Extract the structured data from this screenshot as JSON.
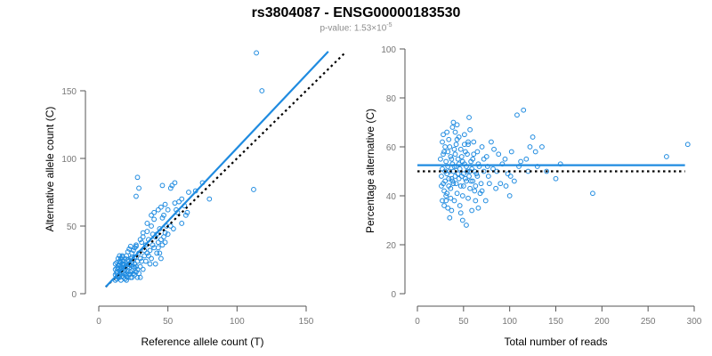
{
  "title": "rs3804087 - ENSG00000183530",
  "subtitle": {
    "prefix": "p-value: 1.53×10",
    "exponent": "-5"
  },
  "colors": {
    "points": "#1f8be0",
    "fit": "#1f8be0",
    "reference": "#000000",
    "axis": "#555555"
  },
  "chart_data": [
    {
      "type": "scatter",
      "xlabel": "Reference allele count (T)",
      "ylabel": "Alternative allele count (C)",
      "xlim": [
        0,
        160
      ],
      "ylim": [
        0,
        180
      ],
      "xticks": [
        0,
        50,
        100,
        150
      ],
      "yticks": [
        0,
        50,
        100,
        150
      ],
      "fit_line": [
        [
          5,
          5
        ],
        [
          166,
          179
        ]
      ],
      "reference_line": [
        [
          5,
          5
        ],
        [
          178,
          178
        ]
      ],
      "points": [
        [
          13,
          23
        ],
        [
          14,
          26
        ],
        [
          15,
          28
        ],
        [
          12,
          18
        ],
        [
          13,
          15
        ],
        [
          15,
          12
        ],
        [
          16,
          20
        ],
        [
          18,
          22
        ],
        [
          17,
          27
        ],
        [
          19,
          18
        ],
        [
          20,
          15
        ],
        [
          21,
          25
        ],
        [
          22,
          22
        ],
        [
          23,
          12
        ],
        [
          24,
          30
        ],
        [
          25,
          20
        ],
        [
          26,
          27
        ],
        [
          27,
          35
        ],
        [
          28,
          24
        ],
        [
          29,
          30
        ],
        [
          30,
          20
        ],
        [
          31,
          38
        ],
        [
          32,
          42
        ],
        [
          33,
          28
        ],
        [
          34,
          36
        ],
        [
          35,
          46
        ],
        [
          36,
          40
        ],
        [
          37,
          32
        ],
        [
          38,
          50
        ],
        [
          39,
          44
        ],
        [
          40,
          55
        ],
        [
          41,
          22
        ],
        [
          42,
          30
        ],
        [
          43,
          34
        ],
        [
          44,
          48
        ],
        [
          45,
          40
        ],
        [
          46,
          56
        ],
        [
          47,
          58
        ],
        [
          48,
          45
        ],
        [
          49,
          50
        ],
        [
          50,
          62
        ],
        [
          52,
          78
        ],
        [
          53,
          80
        ],
        [
          55,
          82
        ],
        [
          56,
          62
        ],
        [
          58,
          68
        ],
        [
          60,
          70
        ],
        [
          62,
          65
        ],
        [
          64,
          60
        ],
        [
          65,
          75
        ],
        [
          70,
          76
        ],
        [
          75,
          82
        ],
        [
          80,
          70
        ],
        [
          28,
          86
        ],
        [
          29,
          78
        ],
        [
          46,
          80
        ],
        [
          112,
          77
        ],
        [
          114,
          178
        ],
        [
          118,
          150
        ],
        [
          27,
          72
        ],
        [
          14,
          12
        ],
        [
          15,
          14
        ],
        [
          16,
          16
        ],
        [
          17,
          13
        ],
        [
          18,
          15
        ],
        [
          19,
          11
        ],
        [
          20,
          13
        ],
        [
          21,
          17
        ],
        [
          22,
          19
        ],
        [
          23,
          21
        ],
        [
          24,
          23
        ],
        [
          25,
          25
        ],
        [
          26,
          22
        ],
        [
          27,
          20
        ],
        [
          28,
          18
        ],
        [
          29,
          15
        ],
        [
          30,
          12
        ],
        [
          12,
          10
        ],
        [
          13,
          11
        ],
        [
          14,
          13
        ],
        [
          15,
          17
        ],
        [
          16,
          10
        ],
        [
          17,
          22
        ],
        [
          18,
          24
        ],
        [
          19,
          26
        ],
        [
          20,
          28
        ],
        [
          21,
          31
        ],
        [
          22,
          33
        ],
        [
          23,
          35
        ],
        [
          24,
          17
        ],
        [
          26,
          14
        ],
        [
          27,
          16
        ],
        [
          28,
          12
        ],
        [
          30,
          26
        ],
        [
          31,
          24
        ],
        [
          32,
          18
        ],
        [
          33,
          32
        ],
        [
          34,
          24
        ],
        [
          35,
          30
        ],
        [
          36,
          28
        ],
        [
          37,
          22
        ],
        [
          38,
          26
        ],
        [
          39,
          36
        ],
        [
          40,
          34
        ],
        [
          41,
          42
        ],
        [
          42,
          44
        ],
        [
          43,
          38
        ],
        [
          44,
          30
        ],
        [
          45,
          26
        ],
        [
          46,
          36
        ],
        [
          47,
          42
        ],
        [
          48,
          38
        ],
        [
          50,
          44
        ],
        [
          52,
          50
        ],
        [
          54,
          48
        ],
        [
          16,
          18
        ],
        [
          17,
          19
        ],
        [
          18,
          19
        ],
        [
          19,
          20
        ],
        [
          20,
          21
        ],
        [
          21,
          20
        ],
        [
          22,
          24
        ],
        [
          23,
          26
        ],
        [
          24,
          27
        ],
        [
          25,
          15
        ],
        [
          26,
          19
        ],
        [
          13,
          16
        ],
        [
          14,
          19
        ],
        [
          15,
          21
        ],
        [
          16,
          23
        ],
        [
          17,
          24
        ],
        [
          18,
          12
        ],
        [
          19,
          14
        ],
        [
          20,
          10
        ],
        [
          21,
          12
        ],
        [
          22,
          14
        ],
        [
          23,
          16
        ],
        [
          24,
          12
        ],
        [
          12,
          14
        ],
        [
          13,
          19
        ],
        [
          14,
          21
        ],
        [
          15,
          24
        ],
        [
          16,
          26
        ],
        [
          17,
          28
        ],
        [
          12,
          22
        ],
        [
          25,
          32
        ],
        [
          26,
          34
        ],
        [
          27,
          36
        ],
        [
          30,
          40
        ],
        [
          32,
          45
        ],
        [
          35,
          52
        ],
        [
          38,
          58
        ],
        [
          40,
          60
        ],
        [
          43,
          62
        ],
        [
          45,
          64
        ],
        [
          48,
          66
        ],
        [
          55,
          67
        ],
        [
          57,
          60
        ],
        [
          60,
          52
        ],
        [
          63,
          58
        ]
      ]
    },
    {
      "type": "scatter",
      "xlabel": "Total number of reads",
      "ylabel": "Percentage alternative (C)",
      "xlim": [
        0,
        300
      ],
      "ylim": [
        0,
        100
      ],
      "xticks": [
        0,
        50,
        100,
        150,
        200,
        250,
        300
      ],
      "yticks": [
        0,
        20,
        40,
        60,
        80,
        100
      ],
      "fit_line": [
        [
          0,
          52.5
        ],
        [
          290,
          52.5
        ]
      ],
      "reference_line": [
        [
          0,
          50
        ],
        [
          290,
          50
        ]
      ],
      "points": [
        [
          25,
          55
        ],
        [
          26,
          48
        ],
        [
          27,
          62
        ],
        [
          28,
          45
        ],
        [
          29,
          58
        ],
        [
          30,
          50
        ],
        [
          31,
          40
        ],
        [
          32,
          66
        ],
        [
          33,
          52
        ],
        [
          34,
          47
        ],
        [
          35,
          60
        ],
        [
          36,
          43
        ],
        [
          37,
          55
        ],
        [
          38,
          68
        ],
        [
          39,
          50
        ],
        [
          40,
          38
        ],
        [
          41,
          57
        ],
        [
          42,
          45
        ],
        [
          43,
          63
        ],
        [
          44,
          49
        ],
        [
          45,
          53
        ],
        [
          46,
          36
        ],
        [
          47,
          59
        ],
        [
          48,
          48
        ],
        [
          49,
          54
        ],
        [
          50,
          44
        ],
        [
          51,
          61
        ],
        [
          52,
          47
        ],
        [
          53,
          52
        ],
        [
          54,
          57
        ],
        [
          55,
          39
        ],
        [
          56,
          72
        ],
        [
          57,
          50
        ],
        [
          58,
          46
        ],
        [
          60,
          55
        ],
        [
          62,
          42
        ],
        [
          64,
          49
        ],
        [
          65,
          58
        ],
        [
          67,
          52
        ],
        [
          69,
          45
        ],
        [
          70,
          60
        ],
        [
          72,
          50
        ],
        [
          74,
          38
        ],
        [
          75,
          56
        ],
        [
          77,
          48
        ],
        [
          80,
          62
        ],
        [
          82,
          51
        ],
        [
          85,
          43
        ],
        [
          88,
          57
        ],
        [
          90,
          45
        ],
        [
          95,
          55
        ],
        [
          98,
          49
        ],
        [
          100,
          40
        ],
        [
          102,
          58
        ],
        [
          105,
          46
        ],
        [
          108,
          73
        ],
        [
          110,
          52
        ],
        [
          115,
          75
        ],
        [
          118,
          55
        ],
        [
          120,
          50
        ],
        [
          125,
          64
        ],
        [
          128,
          58
        ],
        [
          130,
          52
        ],
        [
          135,
          60
        ],
        [
          140,
          50
        ],
        [
          150,
          47
        ],
        [
          155,
          53
        ],
        [
          190,
          41
        ],
        [
          270,
          56
        ],
        [
          293,
          61
        ],
        [
          27,
          51
        ],
        [
          28,
          57
        ],
        [
          29,
          42
        ],
        [
          30,
          46
        ],
        [
          31,
          54
        ],
        [
          32,
          49
        ],
        [
          33,
          58
        ],
        [
          34,
          44
        ],
        [
          35,
          50
        ],
        [
          36,
          56
        ],
        [
          37,
          47
        ],
        [
          38,
          53
        ],
        [
          39,
          45
        ],
        [
          40,
          59
        ],
        [
          41,
          48
        ],
        [
          42,
          52
        ],
        [
          43,
          41
        ],
        [
          44,
          55
        ],
        [
          45,
          47
        ],
        [
          46,
          51
        ],
        [
          47,
          44
        ],
        [
          48,
          56
        ],
        [
          49,
          40
        ],
        [
          50,
          49
        ],
        [
          51,
          53
        ],
        [
          52,
          58
        ],
        [
          53,
          46
        ],
        [
          54,
          50
        ],
        [
          55,
          62
        ],
        [
          56,
          48
        ],
        [
          57,
          43
        ],
        [
          58,
          54
        ],
        [
          59,
          51
        ],
        [
          60,
          46
        ],
        [
          61,
          57
        ],
        [
          62,
          50
        ],
        [
          63,
          44
        ],
        [
          65,
          48
        ],
        [
          66,
          53
        ],
        [
          68,
          41
        ],
        [
          29,
          36
        ],
        [
          31,
          38
        ],
        [
          33,
          35
        ],
        [
          35,
          31
        ],
        [
          37,
          34
        ],
        [
          39,
          70
        ],
        [
          41,
          66
        ],
        [
          43,
          69
        ],
        [
          45,
          64
        ],
        [
          47,
          33
        ],
        [
          49,
          30
        ],
        [
          51,
          65
        ],
        [
          53,
          28
        ],
        [
          55,
          61
        ],
        [
          57,
          67
        ],
        [
          59,
          34
        ],
        [
          61,
          62
        ],
        [
          63,
          38
        ],
        [
          66,
          35
        ],
        [
          70,
          42
        ],
        [
          72,
          55
        ],
        [
          76,
          52
        ],
        [
          78,
          45
        ],
        [
          83,
          59
        ],
        [
          86,
          50
        ],
        [
          92,
          53
        ],
        [
          96,
          44
        ],
        [
          101,
          48
        ],
        [
          112,
          54
        ],
        [
          122,
          60
        ],
        [
          26,
          44
        ],
        [
          27,
          38
        ],
        [
          28,
          65
        ],
        [
          30,
          60
        ],
        [
          32,
          41
        ],
        [
          34,
          63
        ],
        [
          36,
          39
        ],
        [
          38,
          46
        ],
        [
          40,
          52
        ],
        [
          42,
          61
        ]
      ]
    }
  ]
}
